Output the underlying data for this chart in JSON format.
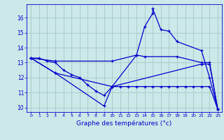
{
  "title": "Graphe des températures (°c)",
  "bg_color": "#cce8e8",
  "grid_color": "#aacccc",
  "line_color": "#0000cc",
  "xlim": [
    -0.5,
    23.5
  ],
  "ylim": [
    9.7,
    16.9
  ],
  "xticks": [
    0,
    1,
    2,
    3,
    4,
    5,
    6,
    7,
    8,
    9,
    10,
    11,
    12,
    13,
    14,
    15,
    16,
    17,
    18,
    19,
    20,
    21,
    22,
    23
  ],
  "yticks": [
    10,
    11,
    12,
    13,
    14,
    15,
    16
  ],
  "series": [
    {
      "x": [
        0,
        1,
        2,
        3,
        4,
        5,
        6,
        7,
        8,
        9,
        10,
        11,
        12,
        13,
        14,
        15,
        16,
        17,
        18,
        19,
        20,
        21,
        22,
        23
      ],
      "y": [
        13.3,
        13.3,
        13.1,
        13.0,
        12.5,
        12.2,
        12.0,
        11.5,
        11.1,
        10.8,
        11.4,
        11.4,
        11.4,
        11.4,
        11.4,
        11.4,
        11.4,
        11.4,
        11.4,
        11.4,
        11.4,
        11.4,
        11.4,
        9.9
      ]
    },
    {
      "x": [
        0,
        3,
        10,
        13,
        14,
        15,
        15,
        16,
        17,
        18,
        21,
        22,
        23
      ],
      "y": [
        13.3,
        12.3,
        11.4,
        13.5,
        15.4,
        16.3,
        16.6,
        15.2,
        15.1,
        14.4,
        13.8,
        12.0,
        9.9
      ]
    },
    {
      "x": [
        0,
        3,
        10,
        13,
        14,
        18,
        21,
        22,
        23
      ],
      "y": [
        13.3,
        13.1,
        13.1,
        13.5,
        13.4,
        13.4,
        13.0,
        13.0,
        9.9
      ]
    },
    {
      "x": [
        0,
        3,
        9,
        10,
        21,
        22,
        23
      ],
      "y": [
        13.3,
        12.3,
        10.1,
        11.4,
        12.9,
        12.9,
        9.9
      ]
    }
  ]
}
